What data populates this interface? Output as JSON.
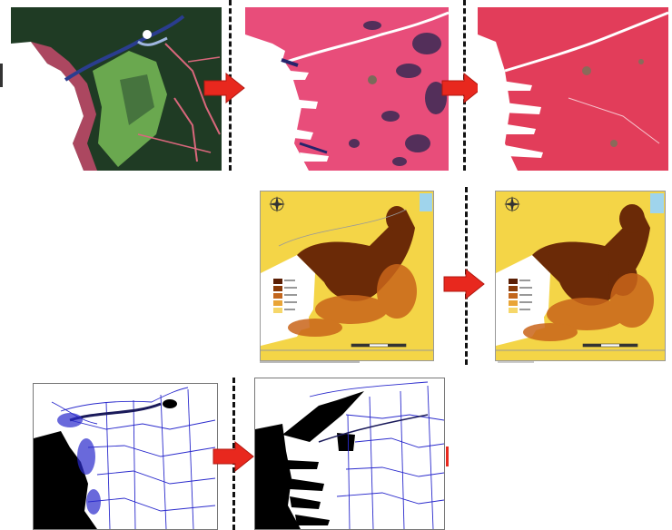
{
  "figure": {
    "colors": {
      "arrow": "#e8281e",
      "arrow_edge": "#b01810",
      "divider": "#111111",
      "forest": "#1f3b24",
      "forest_light": "#2e5233",
      "field_green": "#6aa84f",
      "urban_pink_1": "#e84d7a",
      "urban_pink_2": "#e23d5a",
      "map_yellow": "#f4d547",
      "map_dark": "#6b2a07",
      "map_orange": "#c9651a",
      "line_blue": "#2a2acc",
      "water_blue": "#9fd4ec"
    },
    "rows": [
      {
        "panels": [
          {
            "name": "satellite-landcover-map",
            "type": "raster"
          },
          {
            "name": "urbanization-map-stage-1",
            "type": "raster"
          },
          {
            "name": "urbanization-map-stage-2",
            "type": "raster"
          }
        ]
      },
      {
        "panels": [
          {
            "name": "density-map-before",
            "type": "thematic",
            "icons": [
              "north-arrow-icon",
              "legend-swatches",
              "scale-bar"
            ]
          },
          {
            "name": "density-map-after",
            "type": "thematic",
            "icons": [
              "north-arrow-icon",
              "legend-swatches",
              "scale-bar"
            ]
          }
        ]
      },
      {
        "panels": [
          {
            "name": "street-network-map-before",
            "type": "linework"
          },
          {
            "name": "street-network-map-after",
            "type": "linework"
          }
        ]
      }
    ],
    "legend_colors": [
      "#5a1e04",
      "#8a3b0a",
      "#c2661d",
      "#e9a436",
      "#f6d76a"
    ]
  }
}
